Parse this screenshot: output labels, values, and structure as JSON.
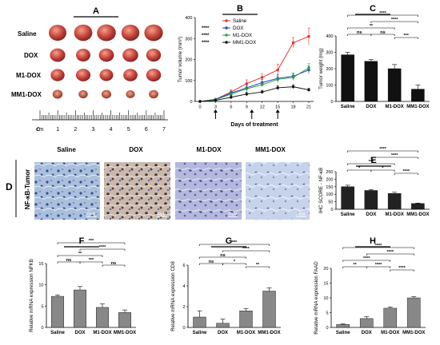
{
  "panels": {
    "A": {
      "letter": "A",
      "rows": [
        "Saline",
        "DOX",
        "M1-DOX",
        "MM1-DOX"
      ],
      "scale_unit": "cm",
      "scale_ticks": [
        "0",
        "1",
        "2",
        "3",
        "4",
        "5",
        "6",
        "7"
      ]
    },
    "D": {
      "letter": "D",
      "side_label": "NF-κB-Tumor",
      "columns": [
        "Saline",
        "DOX",
        "M1-DOX",
        "MM1-DOX"
      ],
      "scale_bar": "20μM"
    }
  },
  "colors": {
    "saline": "#e8322f",
    "dox": "#2e3fd1",
    "m1dox": "#2aa03a",
    "mm1dox": "#111111",
    "bar_dark": "#222222",
    "bar_grey": "#888888"
  },
  "chart_data": [
    {
      "id": "B",
      "letter": "B",
      "type": "line",
      "ylabel": "Tumor volume (mm³)",
      "xlabel": "Days of treatment",
      "x": [
        0,
        3,
        6,
        9,
        12,
        15,
        18,
        21
      ],
      "xlim": [
        0,
        21
      ],
      "ylim": [
        0,
        400
      ],
      "yticks": [
        0,
        100,
        200,
        300,
        400
      ],
      "arrows_at": [
        3,
        10,
        15
      ],
      "series": [
        {
          "name": "Saline",
          "color": "#e8322f",
          "values": [
            0,
            10,
            45,
            85,
            115,
            150,
            280,
            310
          ],
          "errors": [
            0,
            3,
            10,
            18,
            18,
            28,
            25,
            40
          ]
        },
        {
          "name": "DOX",
          "color": "#2e3fd1",
          "values": [
            0,
            10,
            40,
            65,
            90,
            110,
            120,
            150
          ],
          "errors": [
            0,
            3,
            10,
            15,
            14,
            18,
            15,
            18
          ]
        },
        {
          "name": "M1-DOX",
          "color": "#2aa03a",
          "values": [
            0,
            8,
            35,
            60,
            80,
            105,
            115,
            160
          ],
          "errors": [
            0,
            3,
            10,
            14,
            10,
            14,
            15,
            20
          ]
        },
        {
          "name": "MM1-DOX",
          "color": "#111111",
          "values": [
            0,
            5,
            20,
            35,
            45,
            65,
            70,
            55
          ],
          "errors": [
            0,
            2,
            8,
            8,
            8,
            10,
            10,
            8
          ]
        }
      ],
      "legend_stars": [
        "****",
        "****",
        "****"
      ],
      "legend_position": "top-left"
    },
    {
      "id": "C",
      "letter": "C",
      "type": "bar",
      "ylabel": "Tumor weight (mg)",
      "categories": [
        "Saline",
        "DOX",
        "M1-DOX",
        "MM1-DOX"
      ],
      "values": [
        285,
        245,
        200,
        75
      ],
      "errors": [
        15,
        12,
        25,
        25
      ],
      "ylim": [
        0,
        400
      ],
      "yticks": [
        0,
        100,
        200,
        300,
        400
      ],
      "bar_color": "#111111",
      "brackets": [
        {
          "from": 0,
          "to": 3,
          "label": "****"
        },
        {
          "from": 1,
          "to": 3,
          "label": "****"
        },
        {
          "from": 0,
          "to": 2,
          "label": "**"
        },
        {
          "from": 0,
          "to": 1,
          "label": "ns"
        },
        {
          "from": 1,
          "to": 2,
          "label": "ns"
        },
        {
          "from": 2,
          "to": 3,
          "label": "***"
        }
      ]
    },
    {
      "id": "E",
      "letter": "E",
      "type": "bar",
      "ylabel": "IHC SCORE - NF-κB",
      "categories": [
        "Saline",
        "DOX",
        "M1-DOX",
        "MM1-DOX"
      ],
      "values": [
        150,
        125,
        105,
        38
      ],
      "errors": [
        10,
        6,
        8,
        3
      ],
      "ylim": [
        0,
        250
      ],
      "yticks": [
        0,
        50,
        100,
        150,
        200,
        250
      ],
      "bar_color": "#222222",
      "brackets": [
        {
          "from": 0,
          "to": 3,
          "label": "****"
        },
        {
          "from": 1,
          "to": 3,
          "label": "****"
        },
        {
          "from": 0,
          "to": 2,
          "label": "***"
        },
        {
          "from": 0,
          "to": 1,
          "label": "*"
        },
        {
          "from": 1,
          "to": 2,
          "label": "*"
        },
        {
          "from": 2,
          "to": 3,
          "label": "****"
        }
      ]
    },
    {
      "id": "F",
      "letter": "F",
      "type": "bar",
      "ylabel": "Relative mRNA expression NFKB",
      "categories": [
        "Saline",
        "DOX",
        "M1-DOX",
        "MM1-DOX"
      ],
      "values": [
        7.3,
        8.8,
        4.7,
        3.5
      ],
      "errors": [
        0.3,
        0.8,
        0.8,
        0.6
      ],
      "ylim": [
        0,
        15
      ],
      "yticks": [
        0,
        5,
        10,
        15
      ],
      "bar_color": "#888888",
      "brackets": [
        {
          "from": 0,
          "to": 3,
          "label": "***"
        },
        {
          "from": 1,
          "to": 3,
          "label": "****"
        },
        {
          "from": 0,
          "to": 2,
          "label": "**"
        },
        {
          "from": 0,
          "to": 1,
          "label": "ns"
        },
        {
          "from": 1,
          "to": 2,
          "label": "***"
        },
        {
          "from": 2,
          "to": 3,
          "label": "ns"
        }
      ]
    },
    {
      "id": "G",
      "letter": "G",
      "type": "bar",
      "ylabel": "Relative mRNA expression CD8",
      "categories": [
        "Saline",
        "DOX",
        "M1-DOX",
        "MM1-DOX"
      ],
      "values": [
        1.0,
        0.4,
        1.6,
        3.5
      ],
      "errors": [
        0.6,
        0.4,
        0.2,
        0.3
      ],
      "ylim": [
        0,
        6
      ],
      "yticks": [
        0,
        2,
        4,
        6
      ],
      "bar_color": "#888888",
      "brackets": [
        {
          "from": 0,
          "to": 3,
          "label": "***"
        },
        {
          "from": 1,
          "to": 3,
          "label": "****"
        },
        {
          "from": 0,
          "to": 2,
          "label": "ns"
        },
        {
          "from": 0,
          "to": 1,
          "label": "ns"
        },
        {
          "from": 1,
          "to": 2,
          "label": "*"
        },
        {
          "from": 2,
          "to": 3,
          "label": "**"
        }
      ]
    },
    {
      "id": "H",
      "letter": "H",
      "type": "bar",
      "ylabel": "Relative mRNA expression FAAD",
      "categories": [
        "Saline",
        "DOX",
        "M1-DOX",
        "MM1-DOX"
      ],
      "values": [
        1.0,
        3.0,
        6.5,
        10.0
      ],
      "errors": [
        0.2,
        0.6,
        0.4,
        0.4
      ],
      "ylim": [
        0,
        20
      ],
      "yticks": [
        0,
        5,
        10,
        15,
        20
      ],
      "bar_color": "#888888",
      "brackets": [
        {
          "from": 0,
          "to": 3,
          "label": "****"
        },
        {
          "from": 1,
          "to": 3,
          "label": "****"
        },
        {
          "from": 0,
          "to": 2,
          "label": "****"
        },
        {
          "from": 0,
          "to": 1,
          "label": "**"
        },
        {
          "from": 1,
          "to": 2,
          "label": "****"
        },
        {
          "from": 2,
          "to": 3,
          "label": "****"
        }
      ]
    }
  ]
}
